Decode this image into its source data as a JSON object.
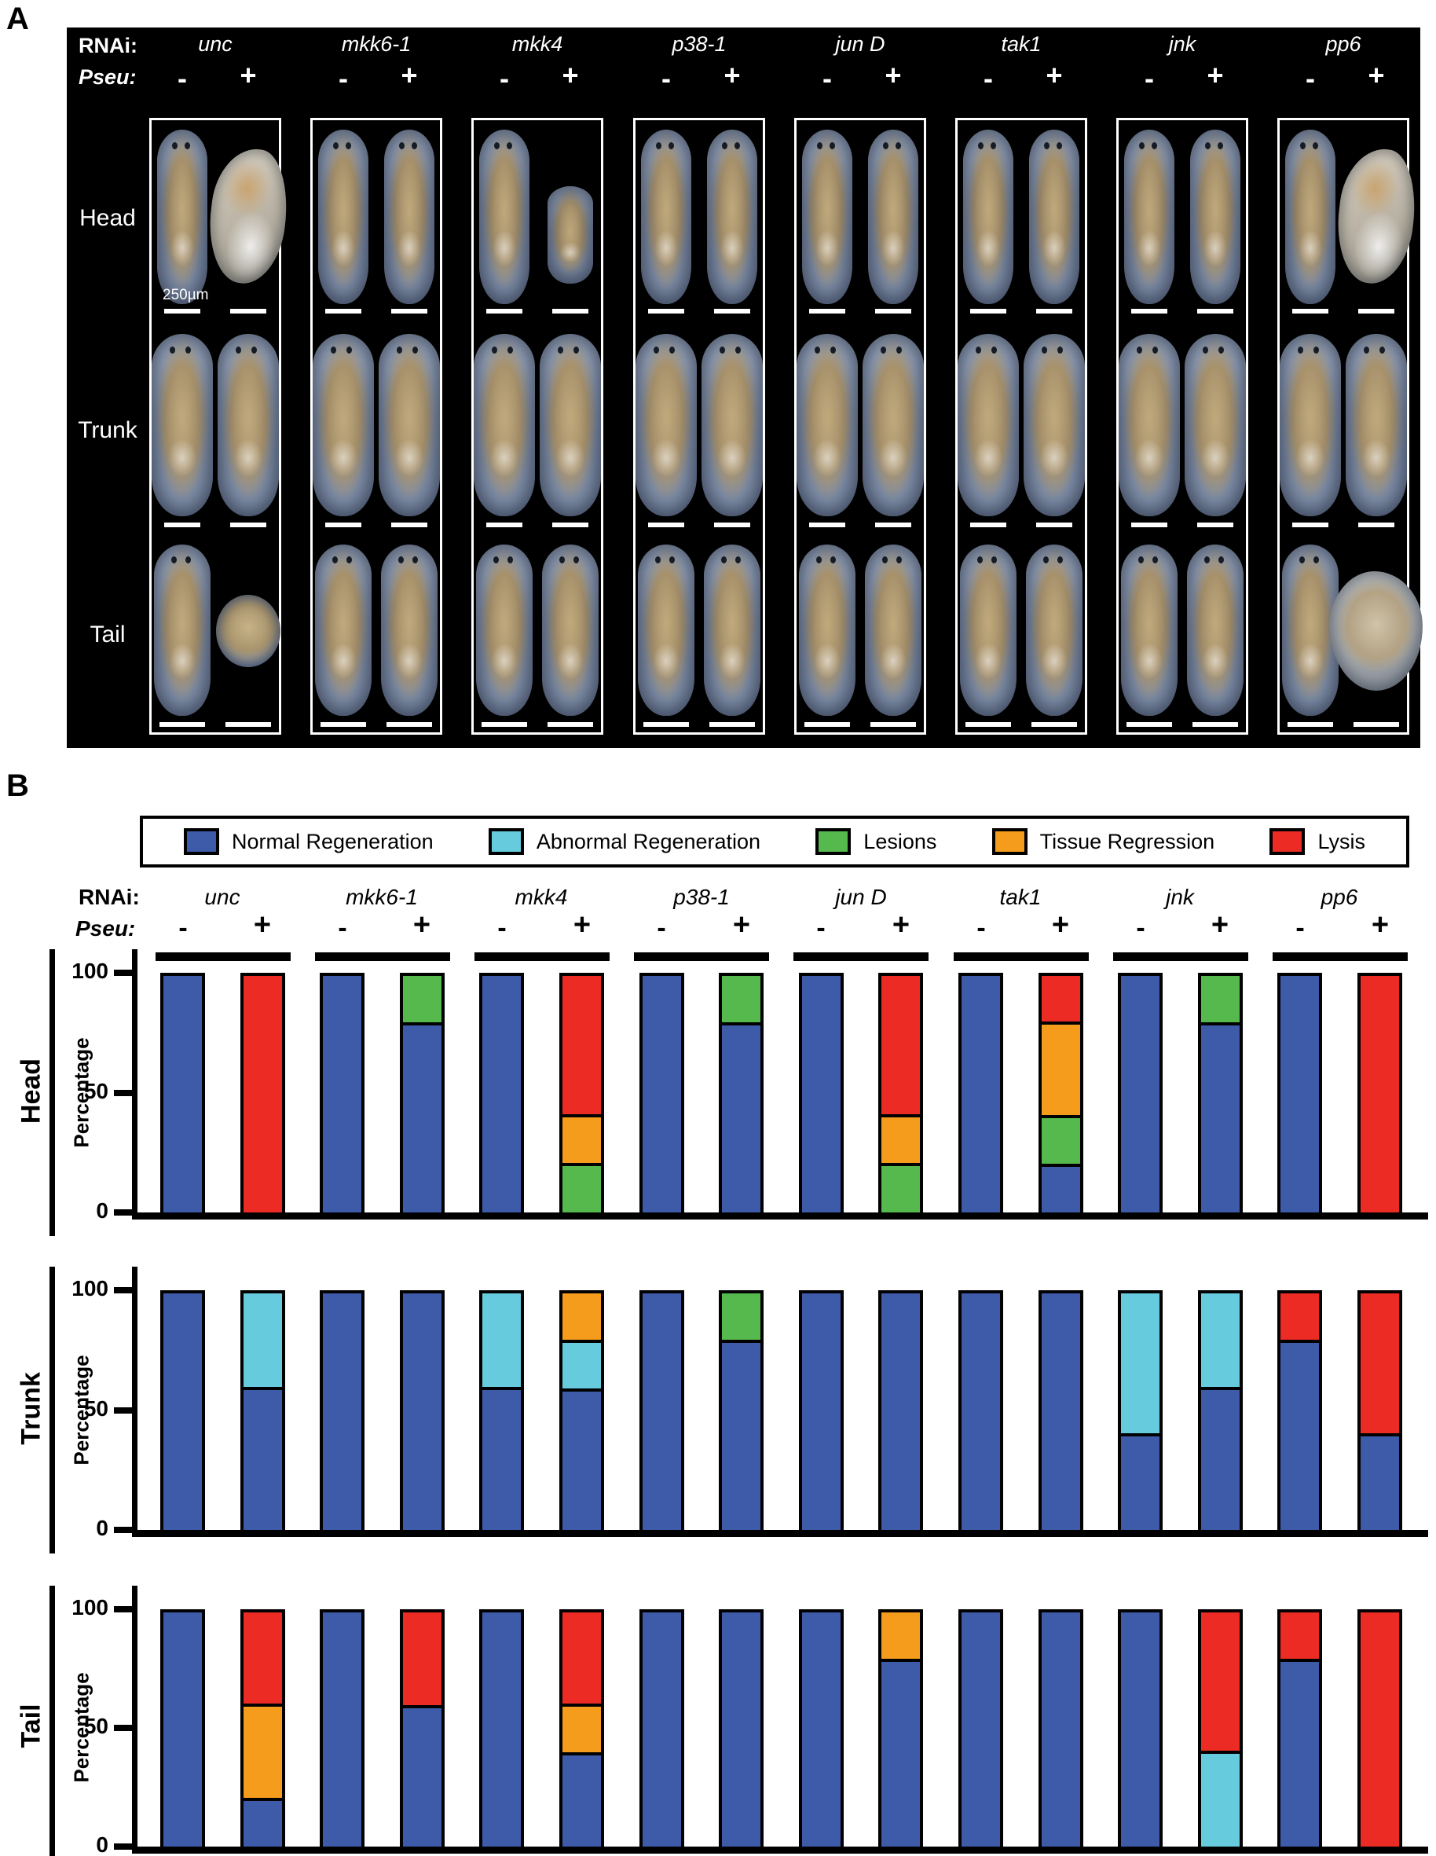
{
  "panel_a": {
    "label": "A",
    "rnai_label": "RNAi:",
    "pseu_label": "Pseu:",
    "conditions": [
      "unc",
      "mkk6-1",
      "mkk4",
      "p38-1",
      "jun D",
      "tak1",
      "jnk",
      "pp6"
    ],
    "pseu_values": [
      "-",
      "+"
    ],
    "row_labels": [
      "Head",
      "Trunk",
      "Tail"
    ],
    "scale_bar_label": "250µm",
    "worm_shapes": [
      {
        "head": [
          "normal",
          "blob"
        ],
        "trunk": [
          "normal",
          "normal"
        ],
        "tail": [
          "normal",
          "ball"
        ]
      },
      {
        "head": [
          "normal",
          "normal"
        ],
        "trunk": [
          "normal",
          "normal"
        ],
        "tail": [
          "normal",
          "normal"
        ]
      },
      {
        "head": [
          "normal",
          "small"
        ],
        "trunk": [
          "normal",
          "normal"
        ],
        "tail": [
          "normal",
          "normal"
        ]
      },
      {
        "head": [
          "normal",
          "normal"
        ],
        "trunk": [
          "normal",
          "normal"
        ],
        "tail": [
          "normal",
          "normal"
        ]
      },
      {
        "head": [
          "normal",
          "normal"
        ],
        "trunk": [
          "normal",
          "normal"
        ],
        "tail": [
          "normal",
          "normal"
        ]
      },
      {
        "head": [
          "normal",
          "normal"
        ],
        "trunk": [
          "normal",
          "normal"
        ],
        "tail": [
          "normal",
          "normal"
        ]
      },
      {
        "head": [
          "normal",
          "normal"
        ],
        "trunk": [
          "normal",
          "normal"
        ],
        "tail": [
          "normal",
          "normal"
        ]
      },
      {
        "head": [
          "normal",
          "blob"
        ],
        "trunk": [
          "normal",
          "normal"
        ],
        "tail": [
          "normal",
          "bigblob"
        ]
      }
    ]
  },
  "panel_b": {
    "label": "B",
    "rnai_label": "RNAi:",
    "pseu_label": "Pseu:",
    "legend": [
      {
        "key": "normal",
        "label": "Normal Regeneration"
      },
      {
        "key": "abnormal",
        "label": "Abnormal Regeneration"
      },
      {
        "key": "lesions",
        "label": "Lesions"
      },
      {
        "key": "regression",
        "label": "Tissue Regression"
      },
      {
        "key": "lysis",
        "label": "Lysis"
      }
    ]
  },
  "chart_data": {
    "type": "bar",
    "subtype": "stacked-percentage",
    "unit": "percent",
    "ylabel": "Percentage",
    "ylim": [
      0,
      100
    ],
    "yticks": [
      0,
      50,
      100
    ],
    "grid": false,
    "legend_position": "top",
    "conditions": [
      "unc",
      "mkk6-1",
      "mkk4",
      "p38-1",
      "jun D",
      "tak1",
      "jnk",
      "pp6"
    ],
    "pseu": [
      "-",
      "+"
    ],
    "colors": {
      "normal": "#3D5BA9",
      "abnormal": "#67CBDE",
      "lesions": "#55B94D",
      "regression": "#F59C1C",
      "lysis": "#EB2B24"
    },
    "sections": [
      {
        "label": "Head",
        "bars": [
          {
            "condition": "unc",
            "pseu": "-",
            "segments": [
              [
                "normal",
                100
              ]
            ]
          },
          {
            "condition": "unc",
            "pseu": "+",
            "segments": [
              [
                "lysis",
                100
              ]
            ]
          },
          {
            "condition": "mkk6-1",
            "pseu": "-",
            "segments": [
              [
                "normal",
                100
              ]
            ]
          },
          {
            "condition": "mkk6-1",
            "pseu": "+",
            "segments": [
              [
                "normal",
                80
              ],
              [
                "lesions",
                20
              ]
            ]
          },
          {
            "condition": "mkk4",
            "pseu": "-",
            "segments": [
              [
                "normal",
                100
              ]
            ]
          },
          {
            "condition": "mkk4",
            "pseu": "+",
            "segments": [
              [
                "lesions",
                20
              ],
              [
                "regression",
                20
              ],
              [
                "lysis",
                60
              ]
            ]
          },
          {
            "condition": "p38-1",
            "pseu": "-",
            "segments": [
              [
                "normal",
                100
              ]
            ]
          },
          {
            "condition": "p38-1",
            "pseu": "+",
            "segments": [
              [
                "normal",
                80
              ],
              [
                "lesions",
                20
              ]
            ]
          },
          {
            "condition": "jun D",
            "pseu": "-",
            "segments": [
              [
                "normal",
                100
              ]
            ]
          },
          {
            "condition": "jun D",
            "pseu": "+",
            "segments": [
              [
                "lesions",
                20
              ],
              [
                "regression",
                20
              ],
              [
                "lysis",
                60
              ]
            ]
          },
          {
            "condition": "tak1",
            "pseu": "-",
            "segments": [
              [
                "normal",
                100
              ]
            ]
          },
          {
            "condition": "tak1",
            "pseu": "+",
            "segments": [
              [
                "normal",
                20
              ],
              [
                "lesions",
                20
              ],
              [
                "regression",
                40
              ],
              [
                "lysis",
                20
              ]
            ]
          },
          {
            "condition": "jnk",
            "pseu": "-",
            "segments": [
              [
                "normal",
                100
              ]
            ]
          },
          {
            "condition": "jnk",
            "pseu": "+",
            "segments": [
              [
                "normal",
                80
              ],
              [
                "lesions",
                20
              ]
            ]
          },
          {
            "condition": "pp6",
            "pseu": "-",
            "segments": [
              [
                "normal",
                100
              ]
            ]
          },
          {
            "condition": "pp6",
            "pseu": "+",
            "segments": [
              [
                "lysis",
                100
              ]
            ]
          }
        ]
      },
      {
        "label": "Trunk",
        "bars": [
          {
            "condition": "unc",
            "pseu": "-",
            "segments": [
              [
                "normal",
                100
              ]
            ]
          },
          {
            "condition": "unc",
            "pseu": "+",
            "segments": [
              [
                "normal",
                60
              ],
              [
                "abnormal",
                40
              ]
            ]
          },
          {
            "condition": "mkk6-1",
            "pseu": "-",
            "segments": [
              [
                "normal",
                100
              ]
            ]
          },
          {
            "condition": "mkk6-1",
            "pseu": "+",
            "segments": [
              [
                "normal",
                100
              ]
            ]
          },
          {
            "condition": "mkk4",
            "pseu": "-",
            "segments": [
              [
                "normal",
                60
              ],
              [
                "abnormal",
                40
              ]
            ]
          },
          {
            "condition": "mkk4",
            "pseu": "+",
            "segments": [
              [
                "normal",
                60
              ],
              [
                "abnormal",
                20
              ],
              [
                "regression",
                20
              ]
            ]
          },
          {
            "condition": "p38-1",
            "pseu": "-",
            "segments": [
              [
                "normal",
                100
              ]
            ]
          },
          {
            "condition": "p38-1",
            "pseu": "+",
            "segments": [
              [
                "normal",
                80
              ],
              [
                "lesions",
                20
              ]
            ]
          },
          {
            "condition": "jun D",
            "pseu": "-",
            "segments": [
              [
                "normal",
                100
              ]
            ]
          },
          {
            "condition": "jun D",
            "pseu": "+",
            "segments": [
              [
                "normal",
                100
              ]
            ]
          },
          {
            "condition": "tak1",
            "pseu": "-",
            "segments": [
              [
                "normal",
                100
              ]
            ]
          },
          {
            "condition": "tak1",
            "pseu": "+",
            "segments": [
              [
                "normal",
                100
              ]
            ]
          },
          {
            "condition": "jnk",
            "pseu": "-",
            "segments": [
              [
                "normal",
                40
              ],
              [
                "abnormal",
                60
              ]
            ]
          },
          {
            "condition": "jnk",
            "pseu": "+",
            "segments": [
              [
                "normal",
                60
              ],
              [
                "abnormal",
                40
              ]
            ]
          },
          {
            "condition": "pp6",
            "pseu": "-",
            "segments": [
              [
                "normal",
                80
              ],
              [
                "lysis",
                20
              ]
            ]
          },
          {
            "condition": "pp6",
            "pseu": "+",
            "segments": [
              [
                "normal",
                40
              ],
              [
                "lysis",
                60
              ]
            ]
          }
        ]
      },
      {
        "label": "Tail",
        "bars": [
          {
            "condition": "unc",
            "pseu": "-",
            "segments": [
              [
                "normal",
                100
              ]
            ]
          },
          {
            "condition": "unc",
            "pseu": "+",
            "segments": [
              [
                "normal",
                20
              ],
              [
                "regression",
                40
              ],
              [
                "lysis",
                40
              ]
            ]
          },
          {
            "condition": "mkk6-1",
            "pseu": "-",
            "segments": [
              [
                "normal",
                100
              ]
            ]
          },
          {
            "condition": "mkk6-1",
            "pseu": "+",
            "segments": [
              [
                "normal",
                60
              ],
              [
                "lysis",
                40
              ]
            ]
          },
          {
            "condition": "mkk4",
            "pseu": "-",
            "segments": [
              [
                "normal",
                100
              ]
            ]
          },
          {
            "condition": "mkk4",
            "pseu": "+",
            "segments": [
              [
                "normal",
                40
              ],
              [
                "regression",
                20
              ],
              [
                "lysis",
                40
              ]
            ]
          },
          {
            "condition": "p38-1",
            "pseu": "-",
            "segments": [
              [
                "normal",
                100
              ]
            ]
          },
          {
            "condition": "p38-1",
            "pseu": "+",
            "segments": [
              [
                "normal",
                100
              ]
            ]
          },
          {
            "condition": "jun D",
            "pseu": "-",
            "segments": [
              [
                "normal",
                100
              ]
            ]
          },
          {
            "condition": "jun D",
            "pseu": "+",
            "segments": [
              [
                "normal",
                80
              ],
              [
                "regression",
                20
              ]
            ]
          },
          {
            "condition": "tak1",
            "pseu": "-",
            "segments": [
              [
                "normal",
                100
              ]
            ]
          },
          {
            "condition": "tak1",
            "pseu": "+",
            "segments": [
              [
                "normal",
                100
              ]
            ]
          },
          {
            "condition": "jnk",
            "pseu": "-",
            "segments": [
              [
                "normal",
                100
              ]
            ]
          },
          {
            "condition": "jnk",
            "pseu": "+",
            "segments": [
              [
                "abnormal",
                40
              ],
              [
                "lysis",
                60
              ]
            ]
          },
          {
            "condition": "pp6",
            "pseu": "-",
            "segments": [
              [
                "normal",
                80
              ],
              [
                "lysis",
                20
              ]
            ]
          },
          {
            "condition": "pp6",
            "pseu": "+",
            "segments": [
              [
                "lysis",
                100
              ]
            ]
          }
        ]
      }
    ]
  }
}
